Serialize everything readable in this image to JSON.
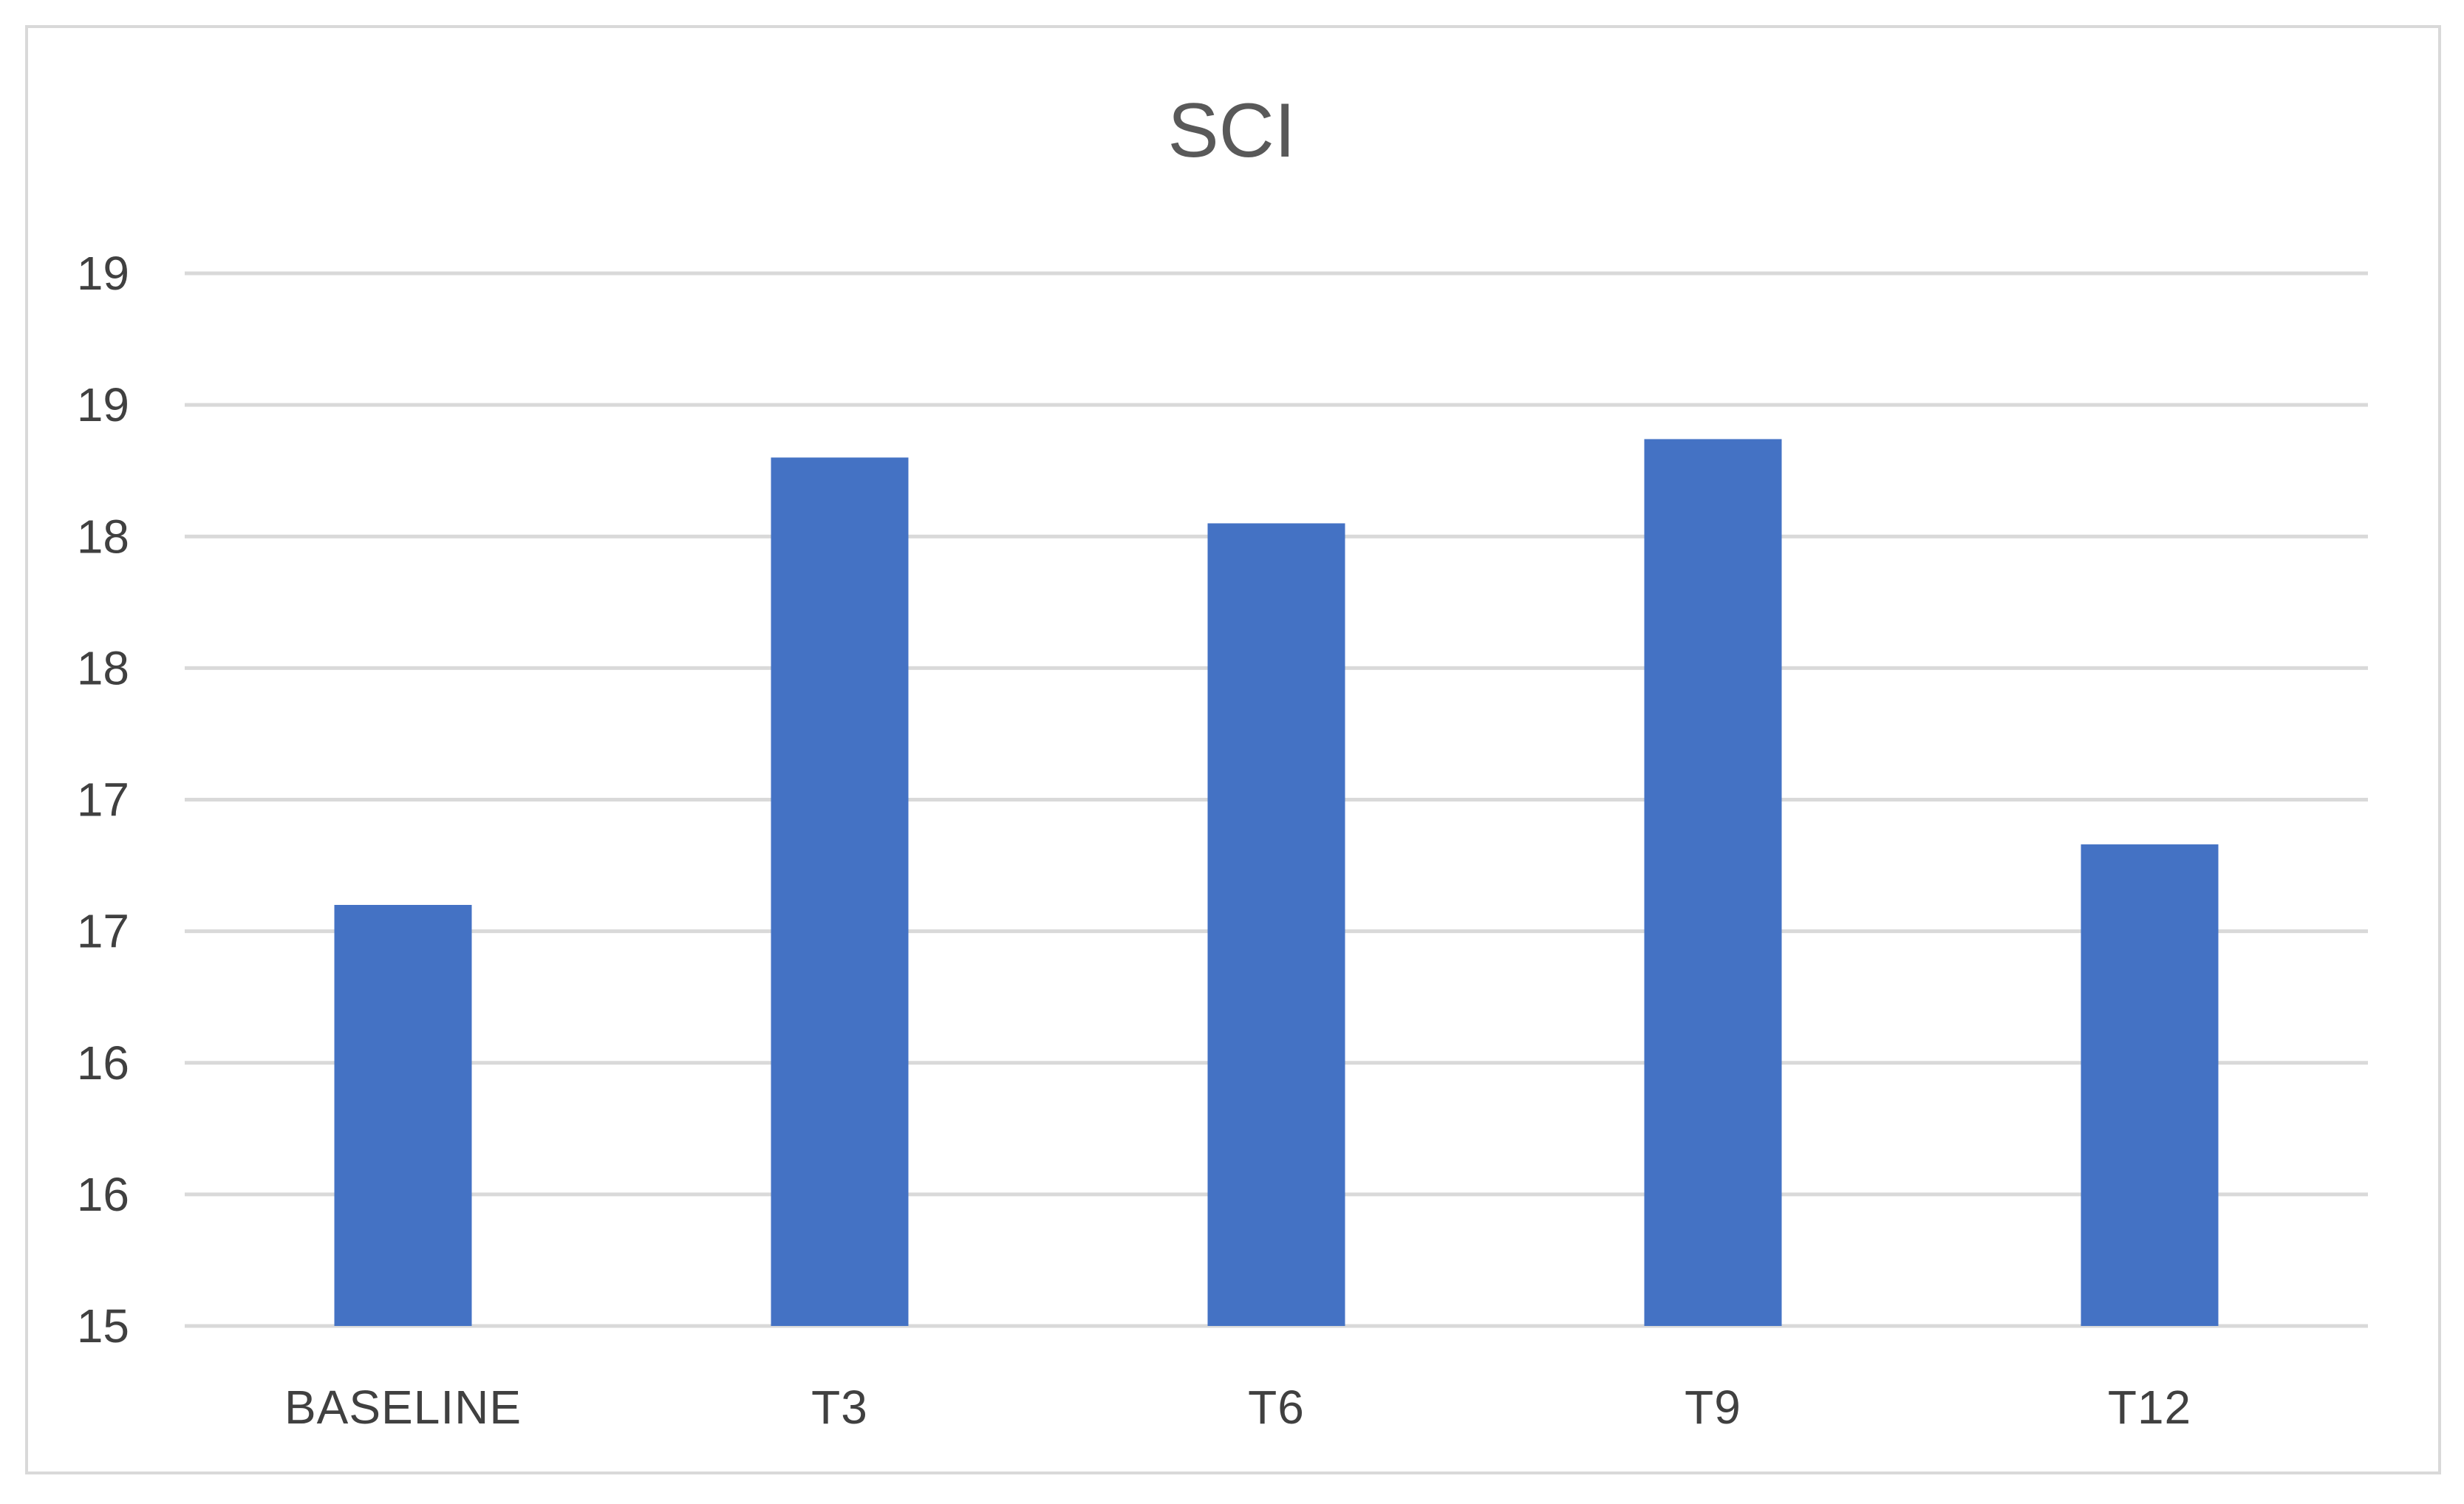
{
  "chart_data": {
    "type": "bar",
    "title": "SCI",
    "xlabel": "",
    "ylabel": "",
    "categories": [
      "BASELINE",
      "T3",
      "T6",
      "T9",
      "T12"
    ],
    "values": [
      16.6,
      18.3,
      18.05,
      18.37,
      16.83
    ],
    "ylim": [
      15,
      19
    ],
    "yticks": [
      15,
      15.5,
      16,
      16.5,
      17,
      17.5,
      18,
      18.5,
      19
    ],
    "ytick_labels": [
      "15",
      "16",
      "16",
      "17",
      "17",
      "18",
      "18",
      "19",
      "19"
    ],
    "grid": true,
    "legend": "none",
    "bar_color": "#4472c4",
    "grid_color": "#d9d9d9"
  }
}
